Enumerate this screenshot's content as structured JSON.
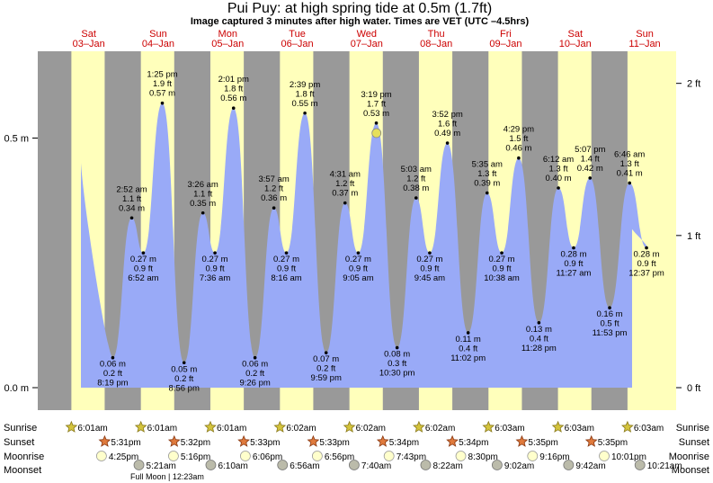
{
  "title": "Pui Puy: at high  spring tide at 0.5m (1.7ft)",
  "subtitle": "Image captured 3 minutes after high water. Times are VET (UTC –4.5hrs)",
  "days": [
    {
      "dow": "Sat",
      "date": "03–Jan"
    },
    {
      "dow": "Sun",
      "date": "04–Jan"
    },
    {
      "dow": "Mon",
      "date": "05–Jan"
    },
    {
      "dow": "Tue",
      "date": "06–Jan"
    },
    {
      "dow": "Wed",
      "date": "07–Jan"
    },
    {
      "dow": "Thu",
      "date": "08–Jan"
    },
    {
      "dow": "Fri",
      "date": "09–Jan"
    },
    {
      "dow": "Sat",
      "date": "10–Jan"
    },
    {
      "dow": "Sun",
      "date": "11–Jan"
    }
  ],
  "chart_data": {
    "type": "area",
    "y_left_ticks": [
      {
        "v": 0.0,
        "label": "0.0 m"
      },
      {
        "v": 0.5,
        "label": "0.5 m"
      }
    ],
    "y_right_ticks": [
      {
        "ft": 0,
        "label": "0 ft"
      },
      {
        "ft": 1,
        "label": "1 ft"
      },
      {
        "ft": 2,
        "label": "2 ft"
      }
    ],
    "ylim_m": [
      -0.04,
      0.66
    ],
    "current": {
      "day": 4,
      "time": "3:22 pm",
      "m": 0.51
    },
    "tides": [
      {
        "day": 0,
        "time": "8:19 pm",
        "m": 0.06,
        "ft": "0.2 ft",
        "type": "low"
      },
      {
        "day": 1,
        "time": "2:52 am",
        "m": 0.34,
        "ft": "1.1 ft",
        "type": "high"
      },
      {
        "day": 1,
        "time": "6:52 am",
        "m": 0.27,
        "ft": "0.9 ft",
        "type": "low"
      },
      {
        "day": 1,
        "time": "1:25 pm",
        "m": 0.57,
        "ft": "1.9 ft",
        "type": "high"
      },
      {
        "day": 1,
        "time": "8:56 pm",
        "m": 0.05,
        "ft": "0.2 ft",
        "type": "low"
      },
      {
        "day": 2,
        "time": "3:26 am",
        "m": 0.35,
        "ft": "1.1 ft",
        "type": "high"
      },
      {
        "day": 2,
        "time": "7:36 am",
        "m": 0.27,
        "ft": "0.9 ft",
        "type": "low"
      },
      {
        "day": 2,
        "time": "2:01 pm",
        "m": 0.56,
        "ft": "1.8 ft",
        "type": "high"
      },
      {
        "day": 2,
        "time": "9:26 pm",
        "m": 0.06,
        "ft": "0.2 ft",
        "type": "low"
      },
      {
        "day": 3,
        "time": "3:57 am",
        "m": 0.36,
        "ft": "1.2 ft",
        "type": "high"
      },
      {
        "day": 3,
        "time": "8:16 am",
        "m": 0.27,
        "ft": "0.9 ft",
        "type": "low"
      },
      {
        "day": 3,
        "time": "2:39 pm",
        "m": 0.55,
        "ft": "1.8 ft",
        "type": "high"
      },
      {
        "day": 3,
        "time": "9:59 pm",
        "m": 0.07,
        "ft": "0.2 ft",
        "type": "low"
      },
      {
        "day": 4,
        "time": "4:31 am",
        "m": 0.37,
        "ft": "1.2 ft",
        "type": "high"
      },
      {
        "day": 4,
        "time": "9:05 am",
        "m": 0.27,
        "ft": "0.9 ft",
        "type": "low"
      },
      {
        "day": 4,
        "time": "3:19 pm",
        "m": 0.53,
        "ft": "1.7 ft",
        "type": "high"
      },
      {
        "day": 4,
        "time": "10:30 pm",
        "m": 0.08,
        "ft": "0.3 ft",
        "type": "low"
      },
      {
        "day": 5,
        "time": "5:03 am",
        "m": 0.38,
        "ft": "1.2 ft",
        "type": "high"
      },
      {
        "day": 5,
        "time": "9:45 am",
        "m": 0.27,
        "ft": "0.9 ft",
        "type": "low"
      },
      {
        "day": 5,
        "time": "3:52 pm",
        "m": 0.49,
        "ft": "1.6 ft",
        "type": "high"
      },
      {
        "day": 5,
        "time": "11:02 pm",
        "m": 0.11,
        "ft": "0.4 ft",
        "type": "low"
      },
      {
        "day": 6,
        "time": "5:35 am",
        "m": 0.39,
        "ft": "1.3 ft",
        "type": "high"
      },
      {
        "day": 6,
        "time": "10:38 am",
        "m": 0.27,
        "ft": "0.9 ft",
        "type": "low"
      },
      {
        "day": 6,
        "time": "4:29 pm",
        "m": 0.46,
        "ft": "1.5 ft",
        "type": "high"
      },
      {
        "day": 6,
        "time": "11:28 pm",
        "m": 0.13,
        "ft": "0.4 ft",
        "type": "low"
      },
      {
        "day": 7,
        "time": "6:12 am",
        "m": 0.4,
        "ft": "1.3 ft",
        "type": "high"
      },
      {
        "day": 7,
        "time": "11:27 am",
        "m": 0.28,
        "ft": "0.9 ft",
        "type": "low"
      },
      {
        "day": 7,
        "time": "11:53 pm",
        "m": 0.16,
        "ft": "0.5 ft",
        "type": "low"
      },
      {
        "day": 7,
        "time": "5:07 pm",
        "m": 0.42,
        "ft": "1.4 ft",
        "type": "high"
      },
      {
        "day": 8,
        "time": "6:46 am",
        "m": 0.41,
        "ft": "1.3 ft",
        "type": "high"
      },
      {
        "day": 8,
        "time": "12:37 pm",
        "m": 0.28,
        "ft": "0.9 ft",
        "type": "low"
      }
    ],
    "sunrise": [
      "6:01am",
      "6:01am",
      "6:01am",
      "6:02am",
      "6:02am",
      "6:02am",
      "6:03am",
      "6:03am",
      "6:03am"
    ],
    "sunset": [
      "5:31pm",
      "5:32pm",
      "5:33pm",
      "5:33pm",
      "5:34pm",
      "5:34pm",
      "5:35pm",
      "5:35pm"
    ],
    "moonrise": [
      {
        "day": 0,
        "time": "4:25pm"
      },
      {
        "day": 1,
        "time": "5:16pm"
      },
      {
        "day": 2,
        "time": "6:06pm"
      },
      {
        "day": 3,
        "time": "6:56pm"
      },
      {
        "day": 4,
        "time": "7:43pm"
      },
      {
        "day": 5,
        "time": "8:30pm"
      },
      {
        "day": 6,
        "time": "9:16pm"
      },
      {
        "day": 7,
        "time": "10:01pm"
      }
    ],
    "moonset": [
      {
        "day": 1,
        "time": "5:21am"
      },
      {
        "day": 2,
        "time": "6:10am"
      },
      {
        "day": 3,
        "time": "6:56am"
      },
      {
        "day": 4,
        "time": "7:40am"
      },
      {
        "day": 5,
        "time": "8:22am"
      },
      {
        "day": 6,
        "time": "9:02am"
      },
      {
        "day": 7,
        "time": "9:42am"
      },
      {
        "day": 8,
        "time": "10:21am"
      }
    ],
    "full_moon": "Full Moon | 12:23am",
    "row_labels": {
      "sunrise": "Sunrise",
      "sunset": "Sunset",
      "moonrise": "Moonrise",
      "moonset": "Moonset"
    },
    "colors": {
      "water": "#99aaf7",
      "day": "#ffffbb",
      "night": "#999999",
      "daylabel": "#cc0000",
      "current": "#e6e05a"
    }
  }
}
